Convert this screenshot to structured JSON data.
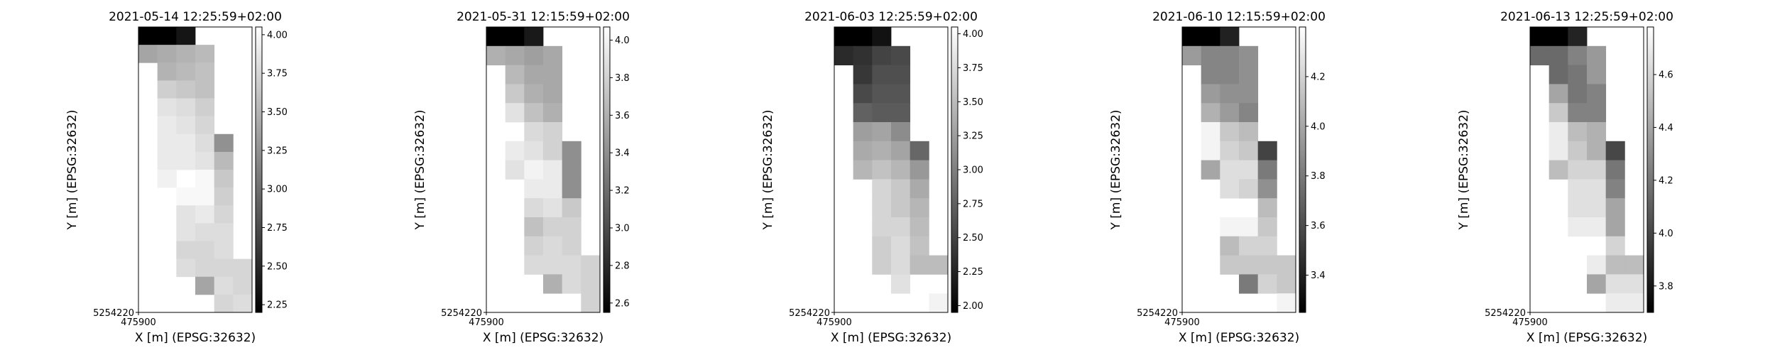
{
  "chart_data": [
    {
      "type": "heatmap",
      "title": "2021-05-14 12:25:59+02:00",
      "xlabel": "X [m] (EPSG:32632)",
      "ylabel": "Y [m] (EPSG:32632)",
      "x_tick_label": "475900",
      "y_tick_label": "5254220",
      "colormap": "gray",
      "colorbar": {
        "min": 2.2,
        "max": 4.05,
        "ticks": [
          "4.00",
          "3.75",
          "3.50",
          "3.25",
          "3.00",
          "2.75",
          "2.50",
          "2.25"
        ]
      },
      "grid": [
        [
          2.2,
          2.2,
          2.35,
          null,
          null,
          null
        ],
        [
          3.4,
          3.45,
          3.5,
          3.55,
          null,
          null
        ],
        [
          null,
          3.5,
          3.55,
          3.6,
          null,
          null
        ],
        [
          null,
          3.7,
          3.65,
          3.6,
          null,
          null
        ],
        [
          null,
          3.85,
          3.8,
          3.7,
          null,
          null
        ],
        [
          null,
          3.9,
          3.85,
          3.75,
          null,
          null
        ],
        [
          null,
          3.9,
          3.9,
          3.8,
          3.25,
          null
        ],
        [
          null,
          3.9,
          3.9,
          3.85,
          3.55,
          null
        ],
        [
          null,
          3.95,
          null,
          4.0,
          3.65,
          null
        ],
        [
          null,
          null,
          4.0,
          4.0,
          3.7,
          null
        ],
        [
          null,
          null,
          3.85,
          3.9,
          3.75,
          null
        ],
        [
          null,
          null,
          3.85,
          3.8,
          3.8,
          null
        ],
        [
          null,
          null,
          3.75,
          3.75,
          3.8,
          null
        ],
        [
          null,
          null,
          3.8,
          3.75,
          3.75,
          3.75
        ],
        [
          null,
          null,
          null,
          3.4,
          3.8,
          3.75
        ],
        [
          null,
          null,
          null,
          null,
          3.75,
          3.8
        ]
      ]
    },
    {
      "type": "heatmap",
      "title": "2021-05-31 12:15:59+02:00",
      "xlabel": "X [m] (EPSG:32632)",
      "ylabel": "Y [m] (EPSG:32632)",
      "x_tick_label": "475900",
      "y_tick_label": "5254220",
      "colormap": "gray",
      "colorbar": {
        "min": 2.55,
        "max": 4.07,
        "ticks": [
          "4.0",
          "3.8",
          "3.6",
          "3.4",
          "3.2",
          "3.0",
          "2.8",
          "2.6"
        ]
      },
      "grid": [
        [
          2.55,
          2.55,
          2.7,
          null,
          null,
          null
        ],
        [
          3.6,
          3.55,
          3.5,
          3.55,
          null,
          null
        ],
        [
          null,
          3.65,
          3.55,
          3.55,
          null,
          null
        ],
        [
          null,
          3.75,
          3.6,
          3.55,
          null,
          null
        ],
        [
          null,
          3.9,
          3.7,
          3.6,
          null,
          null
        ],
        [
          null,
          null,
          3.85,
          3.8,
          null,
          null
        ],
        [
          null,
          3.95,
          3.9,
          3.8,
          3.4,
          null
        ],
        [
          null,
          3.9,
          4.0,
          3.95,
          3.4,
          null
        ],
        [
          null,
          null,
          3.95,
          3.95,
          3.4,
          null
        ],
        [
          null,
          null,
          3.85,
          3.9,
          3.75,
          null
        ],
        [
          null,
          null,
          3.7,
          3.8,
          3.8,
          null
        ],
        [
          null,
          null,
          3.8,
          3.85,
          3.8,
          null
        ],
        [
          null,
          null,
          3.85,
          3.85,
          3.85,
          3.8
        ],
        [
          null,
          null,
          null,
          3.6,
          3.85,
          3.8
        ],
        [
          null,
          null,
          null,
          null,
          null,
          3.8
        ]
      ]
    },
    {
      "type": "heatmap",
      "title": "2021-06-03 12:25:59+02:00",
      "xlabel": "X [m] (EPSG:32632)",
      "ylabel": "Y [m] (EPSG:32632)",
      "x_tick_label": "475900",
      "y_tick_label": "5254220",
      "colormap": "gray",
      "colorbar": {
        "min": 1.95,
        "max": 4.05,
        "ticks": [
          "4.00",
          "3.75",
          "3.50",
          "3.25",
          "3.00",
          "2.75",
          "2.50",
          "2.25",
          "2.00"
        ]
      },
      "grid": [
        [
          1.95,
          1.95,
          2.1,
          null,
          null,
          null
        ],
        [
          2.3,
          2.35,
          2.5,
          2.55,
          null,
          null
        ],
        [
          null,
          2.4,
          2.6,
          2.6,
          null,
          null
        ],
        [
          null,
          2.55,
          2.65,
          2.65,
          null,
          null
        ],
        [
          null,
          2.75,
          2.7,
          2.7,
          null,
          null
        ],
        [
          null,
          3.25,
          3.3,
          3.1,
          null,
          null
        ],
        [
          null,
          3.35,
          3.4,
          3.3,
          2.8,
          null
        ],
        [
          null,
          3.45,
          3.55,
          3.45,
          3.2,
          null
        ],
        [
          null,
          null,
          3.7,
          3.6,
          3.35,
          null
        ],
        [
          null,
          null,
          3.7,
          3.6,
          3.45,
          null
        ],
        [
          null,
          null,
          3.7,
          3.7,
          3.5,
          null
        ],
        [
          null,
          null,
          3.65,
          3.75,
          3.55,
          null
        ],
        [
          null,
          null,
          3.65,
          3.75,
          3.5,
          3.5
        ],
        [
          null,
          null,
          null,
          3.8,
          null,
          null
        ],
        [
          null,
          null,
          null,
          null,
          null,
          3.95
        ]
      ]
    },
    {
      "type": "heatmap",
      "title": "2021-06-10 12:15:59+02:00",
      "xlabel": "X [m] (EPSG:32632)",
      "ylabel": "Y [m] (EPSG:32632)",
      "x_tick_label": "475900",
      "y_tick_label": "5254220",
      "colormap": "gray",
      "colorbar": {
        "min": 3.25,
        "max": 4.4,
        "ticks": [
          "4.2",
          "4.0",
          "3.8",
          "3.6",
          "3.4"
        ]
      },
      "grid": [
        [
          3.25,
          3.25,
          3.4,
          null,
          null,
          null
        ],
        [
          3.95,
          3.85,
          3.85,
          3.9,
          null,
          null
        ],
        [
          null,
          3.85,
          3.85,
          3.9,
          null,
          null
        ],
        [
          null,
          3.95,
          3.9,
          3.9,
          null,
          null
        ],
        [
          null,
          4.05,
          3.95,
          3.85,
          null,
          null
        ],
        [
          null,
          4.35,
          4.15,
          4.1,
          null,
          null
        ],
        [
          null,
          4.35,
          4.2,
          4.15,
          3.55,
          null
        ],
        [
          null,
          4.0,
          4.25,
          4.25,
          3.8,
          null
        ],
        [
          null,
          null,
          4.25,
          4.2,
          3.9,
          null
        ],
        [
          null,
          null,
          null,
          null,
          4.1,
          null
        ],
        [
          null,
          null,
          4.35,
          4.35,
          4.15,
          null
        ],
        [
          null,
          null,
          4.1,
          4.2,
          4.2,
          null
        ],
        [
          null,
          null,
          4.15,
          4.15,
          4.15,
          4.15
        ],
        [
          null,
          null,
          null,
          3.8,
          4.2,
          4.15
        ],
        [
          null,
          null,
          null,
          null,
          null,
          4.35
        ]
      ]
    },
    {
      "type": "heatmap",
      "title": "2021-06-13 12:25:59+02:00",
      "xlabel": "X [m] (EPSG:32632)",
      "ylabel": "Y [m] (EPSG:32632)",
      "x_tick_label": "475900",
      "y_tick_label": "5254220",
      "colormap": "gray",
      "colorbar": {
        "min": 3.7,
        "max": 4.78,
        "ticks": [
          "4.6",
          "4.4",
          "4.2",
          "4.0",
          "3.8"
        ]
      },
      "grid": [
        [
          3.7,
          3.7,
          3.85,
          null,
          null,
          null
        ],
        [
          4.15,
          4.15,
          4.25,
          4.35,
          null,
          null
        ],
        [
          null,
          4.15,
          4.2,
          4.35,
          null,
          null
        ],
        [
          null,
          4.4,
          4.2,
          4.25,
          null,
          null
        ],
        [
          null,
          4.55,
          4.25,
          4.25,
          null,
          null
        ],
        [
          null,
          4.7,
          4.5,
          4.45,
          null,
          null
        ],
        [
          null,
          4.7,
          4.55,
          4.45,
          4.0,
          null
        ],
        [
          null,
          4.5,
          4.6,
          4.6,
          4.2,
          null
        ],
        [
          null,
          null,
          4.65,
          4.65,
          4.25,
          null
        ],
        [
          null,
          null,
          4.65,
          4.65,
          4.4,
          null
        ],
        [
          null,
          null,
          4.7,
          4.7,
          4.4,
          null
        ],
        [
          null,
          null,
          null,
          null,
          4.6,
          null
        ],
        [
          null,
          null,
          null,
          4.7,
          4.5,
          4.5
        ],
        [
          null,
          null,
          null,
          4.4,
          4.65,
          4.65
        ],
        [
          null,
          null,
          null,
          null,
          4.7,
          4.7
        ]
      ]
    }
  ]
}
